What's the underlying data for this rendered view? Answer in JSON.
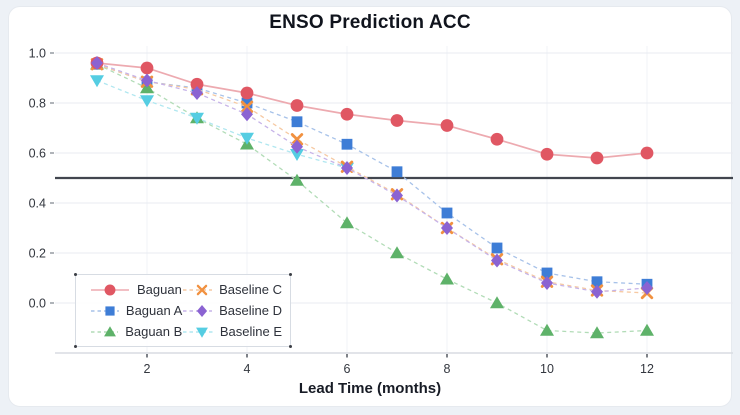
{
  "page": {
    "title": "ENSO Prediction ACC"
  },
  "chart_data": {
    "type": "line",
    "title": "ENSO Prediction ACC",
    "xlabel": "Lead Time (months)",
    "ylabel": "",
    "x": [
      1,
      2,
      3,
      4,
      5,
      6,
      7,
      8,
      9,
      10,
      11,
      12
    ],
    "x_ticks": [
      2,
      4,
      6,
      8,
      10,
      12
    ],
    "x_tick_labels": [
      "2",
      "4",
      "6",
      "8",
      "10",
      "12"
    ],
    "y_ticks": [
      0.0,
      0.2,
      0.4,
      0.6,
      0.8,
      1.0
    ],
    "y_tick_labels": [
      "0.0",
      "0.2",
      "0.4",
      "0.6",
      "0.8",
      "1.0"
    ],
    "xlim": [
      0.16,
      13.7
    ],
    "ylim": [
      -0.2,
      1.03
    ],
    "grid": true,
    "reference_line_y": 0.5,
    "legend_position": "lower-left",
    "series": [
      {
        "name": "Baguan",
        "marker": "circle",
        "line": "solid",
        "color": "#e05763",
        "line_color": "#edaab0",
        "values": [
          0.96,
          0.94,
          0.875,
          0.84,
          0.79,
          0.755,
          0.73,
          0.71,
          0.655,
          0.595,
          0.58,
          0.6
        ]
      },
      {
        "name": "Baguan A",
        "marker": "square",
        "line": "dashed",
        "color": "#3e7dd6",
        "line_color": "#a7c2e9",
        "values": [
          0.955,
          0.885,
          0.86,
          0.8,
          0.725,
          0.635,
          0.525,
          0.36,
          0.22,
          0.12,
          0.085,
          0.075
        ]
      },
      {
        "name": "Baguan B",
        "marker": "triangle-up",
        "line": "dashed",
        "color": "#5eb269",
        "line_color": "#b2dcb7",
        "values": [
          0.955,
          0.86,
          0.74,
          0.635,
          0.49,
          0.32,
          0.2,
          0.095,
          0.0,
          -0.11,
          -0.12,
          -0.11
        ]
      },
      {
        "name": "Baseline C",
        "marker": "x",
        "line": "dashed",
        "color": "#f19140",
        "line_color": "#f6c9a2",
        "values": [
          0.955,
          0.885,
          0.855,
          0.785,
          0.655,
          0.545,
          0.435,
          0.3,
          0.175,
          0.085,
          0.05,
          0.04
        ]
      },
      {
        "name": "Baseline D",
        "marker": "diamond",
        "line": "dashed",
        "color": "#8b63d2",
        "line_color": "#c6b3e8",
        "values": [
          0.96,
          0.89,
          0.84,
          0.755,
          0.625,
          0.54,
          0.43,
          0.3,
          0.17,
          0.08,
          0.045,
          0.06
        ]
      },
      {
        "name": "Baseline E",
        "marker": "triangle-down",
        "line": "dashed",
        "color": "#55cde2",
        "line_color": "#b0e7f0",
        "values": [
          0.89,
          0.81,
          0.74,
          0.66,
          0.595,
          0.54,
          null,
          null,
          null,
          null,
          null,
          null
        ]
      }
    ],
    "colors": {
      "grid_h": "#e9ebf0",
      "grid_v": "#f1f3f7",
      "axis_line": "#d8dce2",
      "reference_line": "#42464f",
      "tick_label": "#33373f"
    }
  }
}
